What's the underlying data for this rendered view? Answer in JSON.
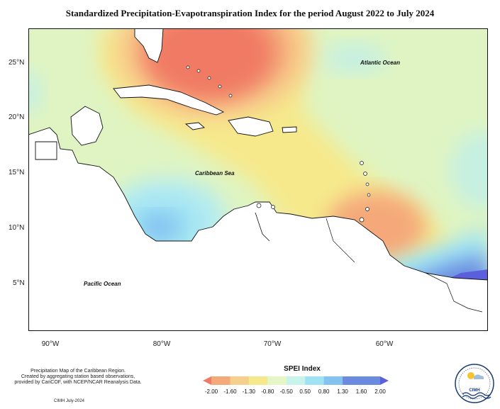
{
  "title": "Standardized Precipitation-Evapotranspiration Index for the period August 2022 to July 2024",
  "labels": {
    "atlantic": "Atlantic Ocean",
    "caribbean": "Caribbean Sea",
    "pacific": "Pacific Ocean"
  },
  "axes": {
    "lat": [
      "25°N",
      "20°N",
      "15°N",
      "10°N",
      "5°N"
    ],
    "lon": [
      "90°W",
      "80°W",
      "70°W",
      "60°W"
    ]
  },
  "legend": {
    "title": "SPEI Index",
    "ticks": [
      "-2.00",
      "-1.60",
      "-1.30",
      "-0.80",
      "-0.50",
      "0.50",
      "0.80",
      "1.30",
      "1.60",
      "2.00"
    ],
    "colors": [
      "#f07a64",
      "#f5a97a",
      "#f7cf8c",
      "#f6e98c",
      "#e6f7c7",
      "#c8f3ea",
      "#9fe2f4",
      "#84c2f1",
      "#6b8be0",
      "#5b5fdc"
    ]
  },
  "footnote": {
    "line1": "Precipitation Map of the Caribbean Region.",
    "line2": "Created by aggregating station based observations,",
    "line3": "provided by CariCOF, with NCEP/NCAR Reanalysis Data."
  },
  "credit": "CIMH July-2024",
  "logo": {
    "text": "CIMH"
  }
}
